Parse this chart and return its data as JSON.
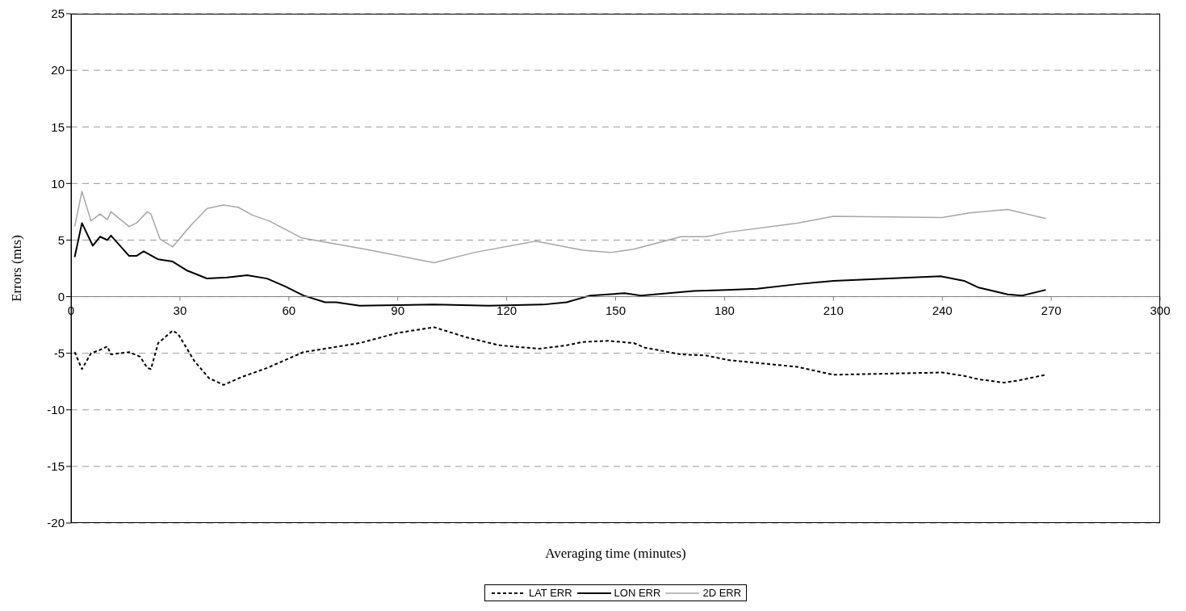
{
  "chart_data": {
    "type": "line",
    "xlabel": "Averaging time (minutes)",
    "ylabel": "Errors (mts)",
    "xlim": [
      0,
      300
    ],
    "xticks": [
      0,
      30,
      60,
      90,
      120,
      150,
      180,
      210,
      240,
      270,
      300
    ],
    "ylim": [
      -20,
      25
    ],
    "yticks": [
      -20,
      -15,
      -10,
      -5,
      0,
      5,
      10,
      15,
      20,
      25
    ],
    "grid": "y",
    "legend": "bottom",
    "marker": "none",
    "series": [
      {
        "name": "LAT ERR",
        "color": "#000000",
        "line_style": "dashed",
        "x": [
          1,
          3,
          5.5,
          8,
          10,
          11,
          16,
          19,
          21,
          22,
          24,
          28,
          29.5,
          34,
          38,
          42,
          47,
          54,
          64,
          79.5,
          90,
          100,
          109,
          118,
          129,
          136.5,
          141,
          148,
          155,
          158,
          168,
          175,
          181,
          200,
          210,
          240,
          246,
          250,
          257,
          261,
          268.5
        ],
        "values": [
          -4.9,
          -6.4,
          -5.0,
          -4.7,
          -4.4,
          -5.1,
          -4.9,
          -5.3,
          -6.3,
          -6.4,
          -4.1,
          -3.0,
          -3.3,
          -5.7,
          -7.2,
          -7.8,
          -7.1,
          -6.3,
          -4.9,
          -4.1,
          -3.2,
          -2.7,
          -3.6,
          -4.3,
          -4.6,
          -4.3,
          -4.0,
          -3.9,
          -4.1,
          -4.5,
          -5.1,
          -5.2,
          -5.6,
          -6.2,
          -6.9,
          -6.7,
          -7.0,
          -7.3,
          -7.6,
          -7.4,
          -6.9
        ]
      },
      {
        "name": "LON ERR",
        "color": "#000000",
        "line_style": "solid",
        "x": [
          1,
          3,
          6,
          8,
          10,
          11,
          16,
          18,
          20,
          24,
          28,
          32,
          37.5,
          43,
          48.5,
          54,
          59,
          64,
          70,
          73,
          79.5,
          100,
          115,
          130,
          136.5,
          143,
          152.5,
          157,
          171.5,
          180.5,
          189,
          200,
          210,
          239.5,
          246,
          250,
          258,
          262,
          268.5
        ],
        "values": [
          3.5,
          6.5,
          4.5,
          5.3,
          5.0,
          5.4,
          3.6,
          3.6,
          4.0,
          3.3,
          3.1,
          2.3,
          1.6,
          1.7,
          1.9,
          1.6,
          0.9,
          0.1,
          -0.5,
          -0.5,
          -0.8,
          -0.7,
          -0.8,
          -0.7,
          -0.5,
          0.1,
          0.3,
          0.1,
          0.5,
          0.6,
          0.7,
          1.1,
          1.4,
          1.8,
          1.4,
          0.8,
          0.2,
          0.1,
          0.6
        ]
      },
      {
        "name": "2D ERR",
        "color": "#a6a6a6",
        "line_style": "solid",
        "x": [
          1,
          3,
          5.5,
          8,
          10,
          11,
          16,
          18,
          21,
          22,
          24.5,
          28,
          33,
          37.5,
          42,
          46,
          50,
          54.5,
          63.5,
          81,
          100,
          111,
          128,
          141,
          148.5,
          155,
          168,
          175,
          181,
          200,
          210,
          240,
          247.5,
          258,
          268.5
        ],
        "values": [
          6.2,
          9.3,
          6.7,
          7.3,
          6.8,
          7.5,
          6.2,
          6.5,
          7.5,
          7.3,
          5.1,
          4.4,
          6.3,
          7.8,
          8.1,
          7.9,
          7.2,
          6.7,
          5.2,
          4.2,
          3.0,
          3.9,
          4.9,
          4.1,
          3.9,
          4.2,
          5.3,
          5.3,
          5.7,
          6.5,
          7.1,
          7.0,
          7.4,
          7.7,
          6.9
        ]
      }
    ]
  }
}
